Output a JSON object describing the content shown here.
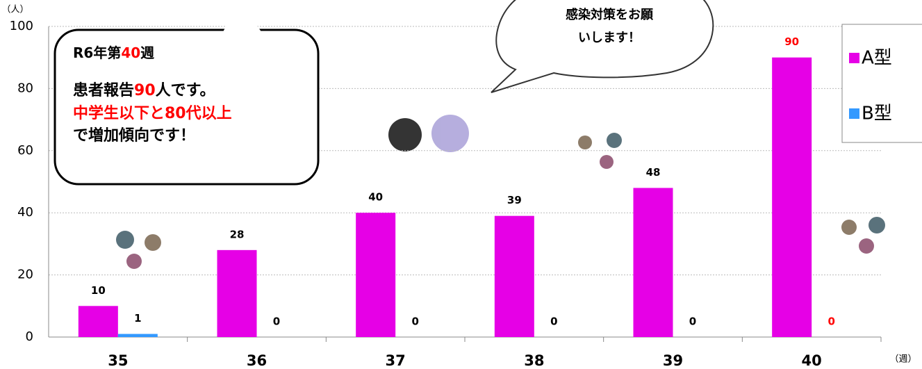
{
  "chart_data": {
    "type": "bar",
    "y_unit": "（人）",
    "x_unit": "（週）",
    "categories": [
      "35",
      "36",
      "37",
      "38",
      "39",
      "40"
    ],
    "series": [
      {
        "name": "A型",
        "color": "#e600e6",
        "values": [
          10,
          28,
          40,
          39,
          48,
          90
        ],
        "label_colors": [
          "#000000",
          "#000000",
          "#000000",
          "#000000",
          "#000000",
          "#ff0000"
        ]
      },
      {
        "name": "B型",
        "color": "#3399ff",
        "values": [
          1,
          0,
          0,
          0,
          0,
          0
        ],
        "label_colors": [
          "#000000",
          "#000000",
          "#000000",
          "#000000",
          "#000000",
          "#ff0000"
        ]
      }
    ],
    "ylim": [
      0,
      100
    ],
    "yticks": [
      0,
      20,
      40,
      60,
      80,
      100
    ],
    "grid": true,
    "legend": "right",
    "callout": {
      "lines": [
        [
          {
            "text": "R6年第"
          },
          {
            "text": "40",
            "color": "#ff0000"
          },
          {
            "text": "週"
          }
        ],
        [
          {
            "text": "患者報告"
          },
          {
            "text": "90",
            "color": "#ff0000"
          },
          {
            "text": "人です。"
          }
        ],
        [
          {
            "text": "中学生以下と80代以上",
            "color": "#ff0000"
          }
        ],
        [
          {
            "text": "で増加傾向です！"
          }
        ]
      ]
    },
    "bubble": {
      "lines": [
        "感染対策をお願",
        "いします！"
      ]
    }
  }
}
